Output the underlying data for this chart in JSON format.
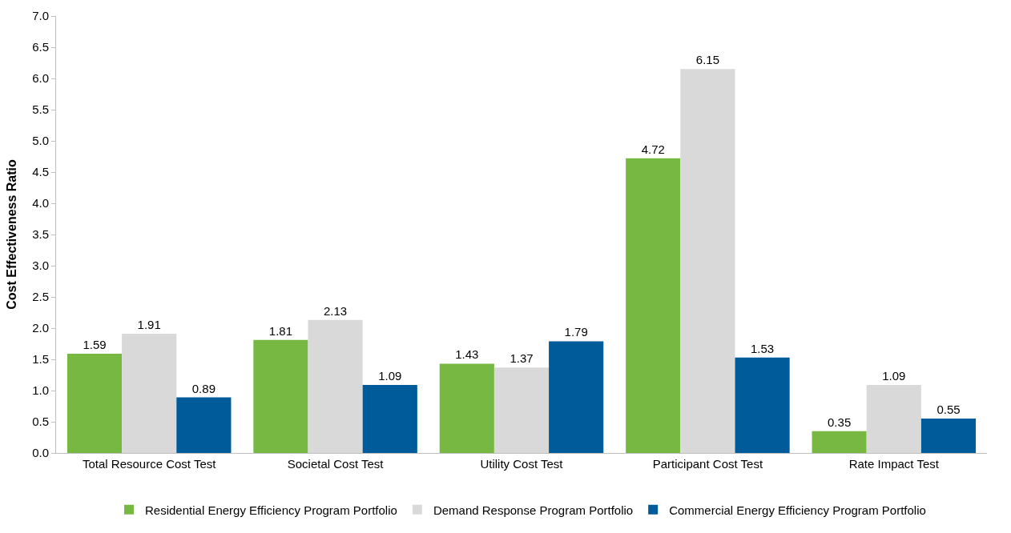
{
  "chart_data": {
    "type": "bar",
    "ylabel": "Cost Effectiveness Ratio",
    "categories": [
      "Total Resource Cost Test",
      "Societal Cost Test",
      "Utility Cost Test",
      "Participant Cost Test",
      "Rate Impact Test"
    ],
    "series": [
      {
        "name": "Residential Energy Efficiency Program Portfolio",
        "color": "#77b843",
        "values": [
          1.59,
          1.81,
          1.43,
          4.72,
          0.35
        ]
      },
      {
        "name": "Demand Response Program Portfolio",
        "color": "#d9d9d9",
        "values": [
          1.91,
          2.13,
          1.37,
          6.15,
          1.09
        ]
      },
      {
        "name": "Commercial Energy Efficiency Program Portfolio",
        "color": "#005b9a",
        "values": [
          0.89,
          1.09,
          1.79,
          1.53,
          0.55
        ]
      }
    ],
    "ylim": [
      0,
      7
    ],
    "yticks": [
      {
        "value": 0,
        "label": "0.0"
      },
      {
        "value": 0.5,
        "label": "0.5"
      },
      {
        "value": 1,
        "label": "1.0"
      },
      {
        "value": 1.5,
        "label": "1.5"
      },
      {
        "value": 2,
        "label": "2.0"
      },
      {
        "value": 2.5,
        "label": "2.5"
      },
      {
        "value": 3,
        "label": "3.0"
      },
      {
        "value": 3.5,
        "label": "3.5"
      },
      {
        "value": 4,
        "label": "4.0"
      },
      {
        "value": 4.5,
        "label": "4.5"
      },
      {
        "value": 5,
        "label": "5.0"
      },
      {
        "value": 5.5,
        "label": "5.5"
      },
      {
        "value": 6,
        "label": "6.0"
      },
      {
        "value": 6.5,
        "label": "6.5"
      },
      {
        "value": 7,
        "label": "7.0"
      }
    ],
    "data_labels": true,
    "legend": "bottom"
  }
}
